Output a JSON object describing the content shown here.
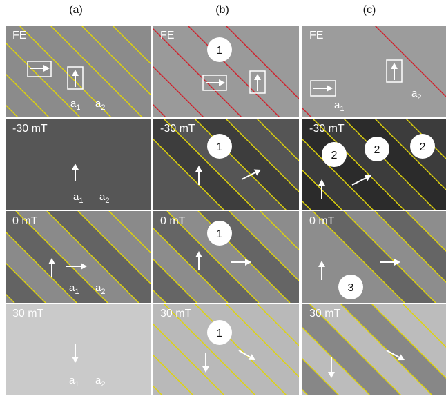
{
  "columns": [
    "(a)",
    "(b)",
    "(c)"
  ],
  "row_labels": [
    "FE",
    "-30 mT",
    "0 mT",
    "30 mT"
  ],
  "marker_labels": {
    "a1_main": "a",
    "a1_sub": "1",
    "a2_main": "a",
    "a2_sub": "2"
  },
  "badges": {
    "one": "1",
    "two": "2",
    "three": "3"
  },
  "colors": {
    "domain_line": "#e0d40a",
    "wall_line": "#d0202a",
    "arrow": "#ffffff"
  }
}
